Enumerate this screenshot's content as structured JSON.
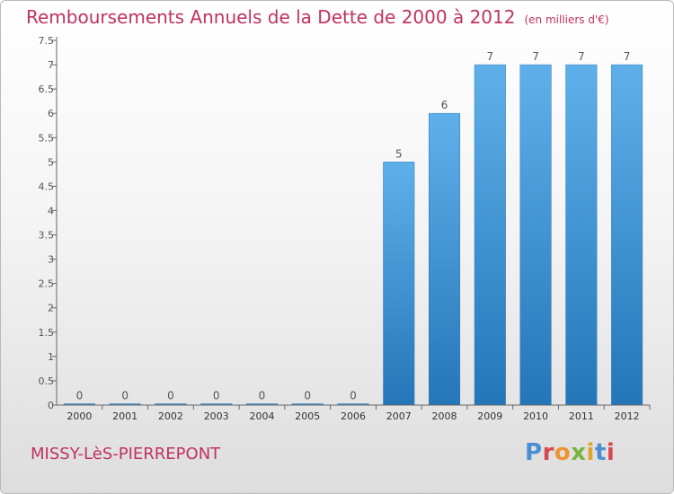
{
  "title": "Remboursements Annuels de la Dette de 2000 à 2012",
  "unit": "(en milliers d'€)",
  "commune": "MISSY-LèS-PIERREPONT",
  "logo": {
    "text": "Proxiti",
    "letter_colors": [
      "#4a8fd6",
      "#d8484f",
      "#f09233",
      "#7bb43c",
      "#e0a62b",
      "#4a8fd6",
      "#d8484f"
    ]
  },
  "colors": {
    "title": "#c0325f",
    "bar_light": "#5fb0ea",
    "bar_dark": "#2476b8",
    "axis": "#666666",
    "label": "#555555"
  },
  "chart_data": {
    "type": "bar",
    "categories": [
      "2000",
      "2001",
      "2002",
      "2003",
      "2004",
      "2005",
      "2006",
      "2007",
      "2008",
      "2009",
      "2010",
      "2011",
      "2012"
    ],
    "values": [
      0,
      0,
      0,
      0,
      0,
      0,
      0,
      5,
      6,
      7,
      7,
      7,
      7
    ],
    "data_labels": [
      "0",
      "0",
      "0",
      "0",
      "0",
      "0",
      "0",
      "5",
      "6",
      "7",
      "7",
      "7",
      "7"
    ],
    "yticks": [
      0,
      0.5,
      1,
      1.5,
      2,
      2.5,
      3,
      3.5,
      4,
      4.5,
      5,
      5.5,
      6,
      6.5,
      7,
      7.5
    ],
    "ytick_labels": [
      "0",
      "0.5",
      "1",
      "1.5",
      "2",
      "2.5",
      "3",
      "3.5",
      "4",
      "4.5",
      "5",
      "5.5",
      "6",
      "6.5",
      "7",
      "7.5"
    ],
    "ylim": [
      0,
      7.5
    ],
    "grid": false,
    "legend": "none"
  }
}
